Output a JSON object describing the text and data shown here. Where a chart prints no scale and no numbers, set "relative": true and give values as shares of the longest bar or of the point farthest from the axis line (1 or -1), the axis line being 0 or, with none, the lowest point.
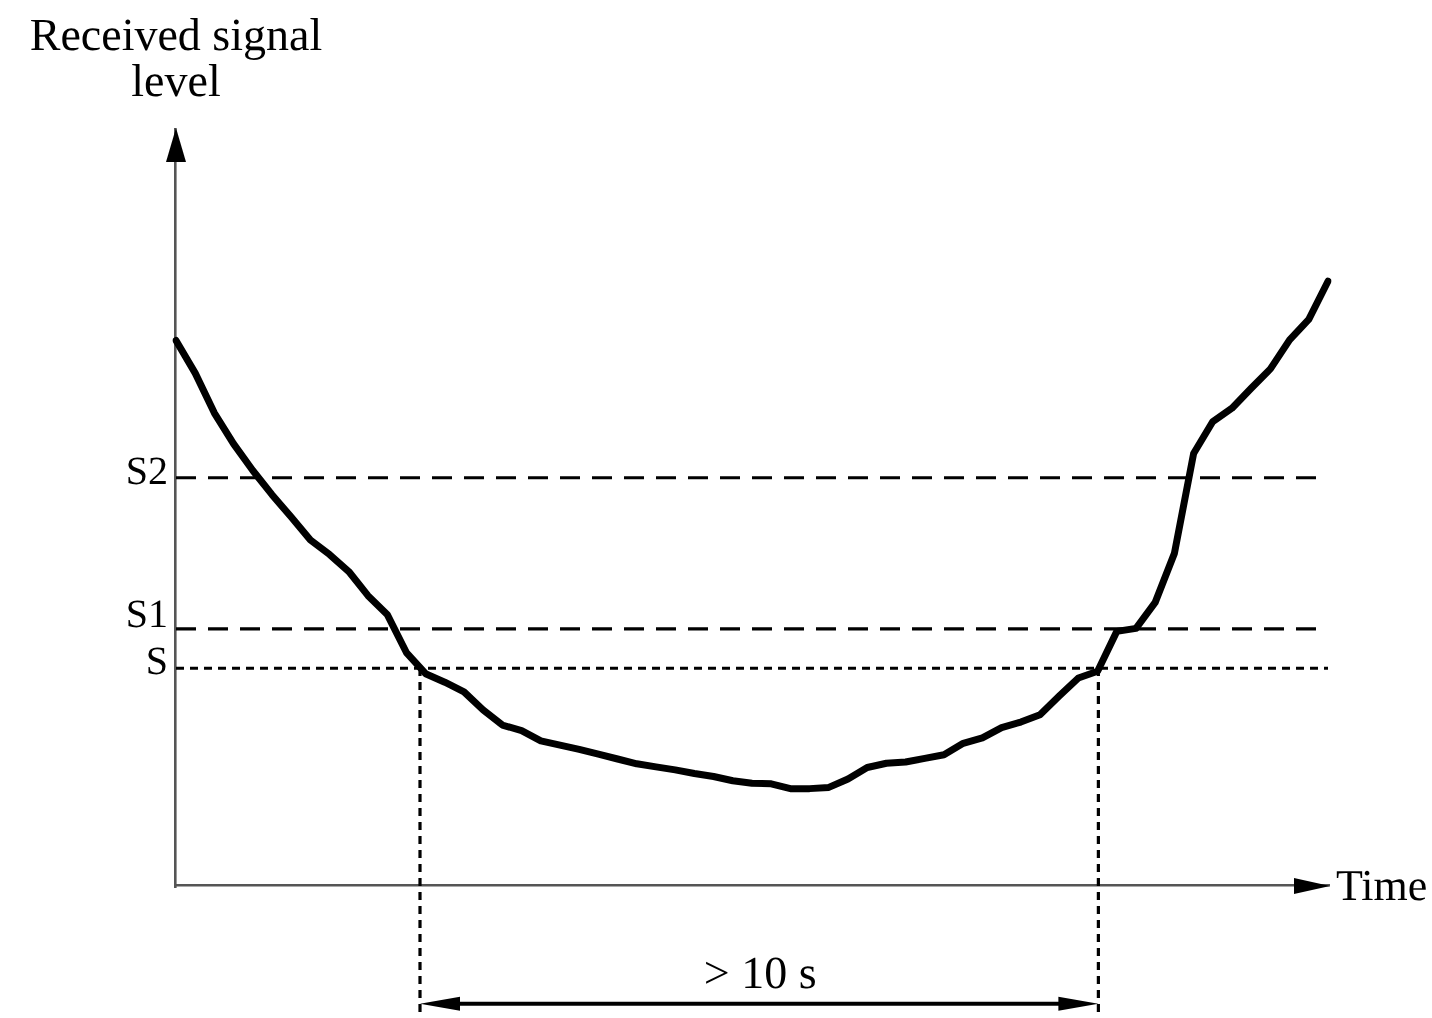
{
  "chart_data": {
    "type": "line",
    "xlabel": "Time",
    "ylabel": "Received signal level",
    "relative": true,
    "legend": false,
    "marker": "none",
    "line_style": "solid",
    "categories": [
      null,
      null,
      null,
      null,
      null,
      null,
      null,
      null,
      null,
      null,
      null,
      null,
      null,
      null,
      null,
      null,
      null,
      null,
      null,
      null,
      null,
      null,
      null,
      null,
      null,
      null,
      null,
      null,
      null,
      null,
      null,
      null,
      null,
      null,
      null,
      null,
      null,
      null,
      null,
      null,
      null,
      null,
      null,
      null,
      null,
      null,
      null,
      null,
      null,
      null,
      null,
      null,
      null,
      null,
      null,
      null,
      null,
      null,
      null,
      null,
      null
    ],
    "series": [
      {
        "color": "#000000",
        "values": [
          0.902,
          0.848,
          0.782,
          0.731,
          0.687,
          0.647,
          0.61,
          0.572,
          0.548,
          0.52,
          0.48,
          0.449,
          0.386,
          0.351,
          0.337,
          0.321,
          0.291,
          0.266,
          0.257,
          0.24,
          0.233,
          0.226,
          0.218,
          0.21,
          0.202,
          0.197,
          0.192,
          0.186,
          0.181,
          0.174,
          0.17,
          0.169,
          0.161,
          0.161,
          0.163,
          0.177,
          0.196,
          0.203,
          0.205,
          0.211,
          0.217,
          0.236,
          0.245,
          0.262,
          0.271,
          0.283,
          0.314,
          0.344,
          0.355,
          0.421,
          0.426,
          0.469,
          0.55,
          0.715,
          0.768,
          0.79,
          0.823,
          0.855,
          0.903,
          0.937,
          1.0
        ]
      }
    ],
    "ref_lines": [
      {
        "axis": "y",
        "value": 0.675,
        "label": "S2",
        "line_style": "dashed",
        "color": "#000000"
      },
      {
        "axis": "y",
        "value": 0.425,
        "label": "S1",
        "line_style": "dashed",
        "color": "#000000"
      },
      {
        "axis": "y",
        "value": 0.36,
        "label": "S",
        "line_style": "dotted",
        "color": "#000000"
      }
    ],
    "annotations": [
      "> 10 s"
    ]
  }
}
